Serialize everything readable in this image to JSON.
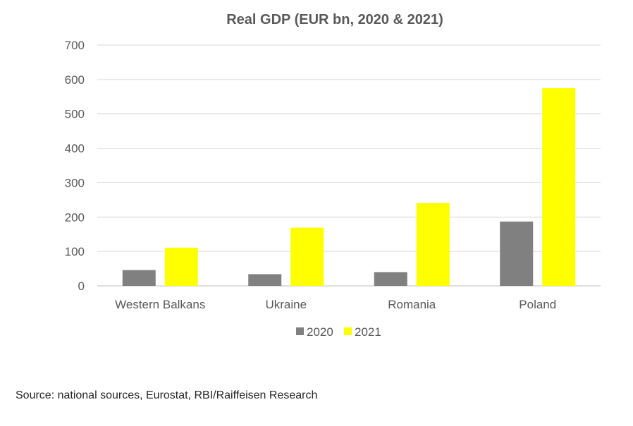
{
  "chart_data": {
    "type": "bar",
    "title": "Real GDP (EUR bn, 2020 & 2021)",
    "categories": [
      "Western Balkans",
      "Ukraine",
      "Romania",
      "Poland"
    ],
    "series": [
      {
        "name": "2020",
        "color": "#808080",
        "values": [
          46,
          34,
          40,
          187
        ]
      },
      {
        "name": "2021",
        "color": "#FFFF00",
        "values": [
          111,
          169,
          241,
          575
        ]
      }
    ],
    "y_ticks": [
      0,
      100,
      200,
      300,
      400,
      500,
      600,
      700
    ],
    "ylim": [
      0,
      700
    ],
    "grid": true,
    "legend_position": "bottom"
  },
  "footer": {
    "source": "Source: national sources, Eurostat, RBI/Raiffeisen Research"
  }
}
